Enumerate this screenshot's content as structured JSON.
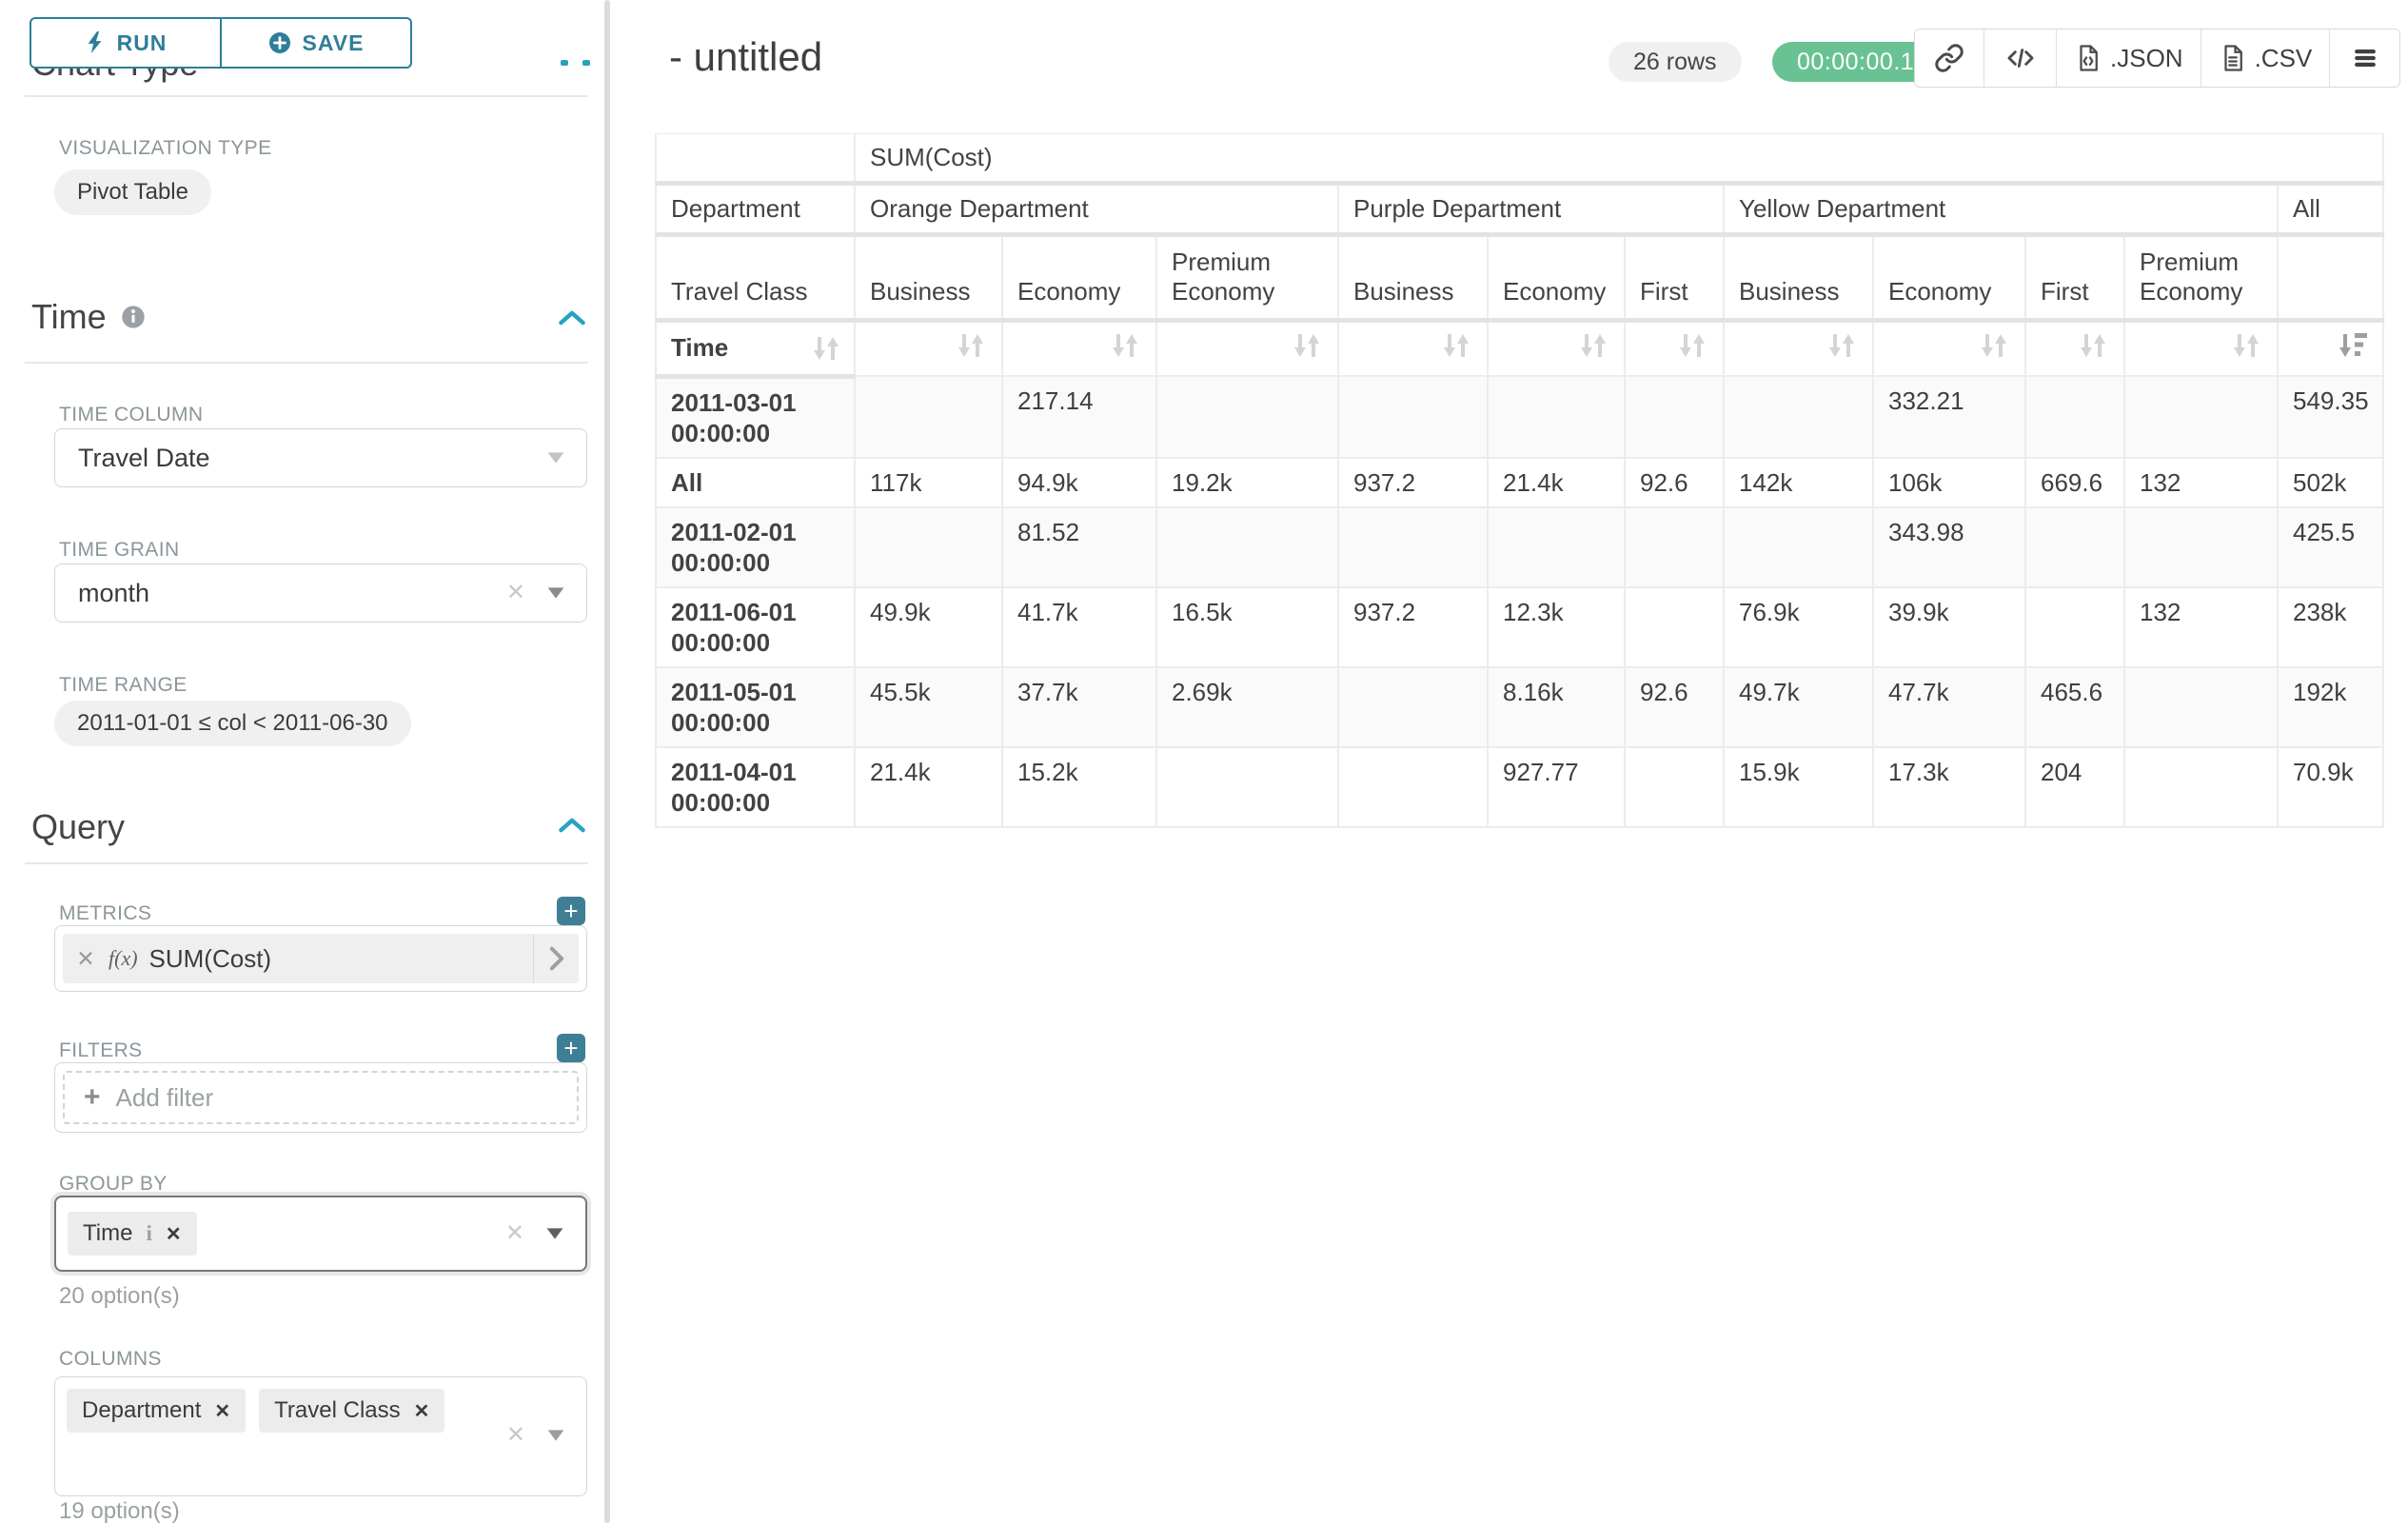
{
  "colors": {
    "primary": "#2E7E99",
    "accent": "#27A2C3",
    "success": "#69C292"
  },
  "toolbar": {
    "run_label": "RUN",
    "save_label": "SAVE"
  },
  "sidebar": {
    "chart_type_heading": "Chart Type",
    "visualization_type_label": "VISUALIZATION TYPE",
    "visualization_type_value": "Pivot Table",
    "time": {
      "title": "Time",
      "column_label": "TIME COLUMN",
      "column_value": "Travel Date",
      "grain_label": "TIME GRAIN",
      "grain_value": "month",
      "range_label": "TIME RANGE",
      "range_value": "2011-01-01 ≤ col < 2011-06-30"
    },
    "query": {
      "title": "Query",
      "metrics_label": "METRICS",
      "metric_fx": "f(x)",
      "metric_value": "SUM(Cost)",
      "filters_label": "FILTERS",
      "add_filter_placeholder": "Add filter",
      "group_by_label": "GROUP BY",
      "group_by_tags": [
        "Time"
      ],
      "group_by_options_hint": "20 option(s)",
      "columns_label": "COLUMNS",
      "columns_tags": [
        "Department",
        "Travel Class"
      ],
      "columns_options_hint": "19 option(s)"
    }
  },
  "results_header": {
    "title": "- untitled",
    "row_count": "26 rows",
    "elapsed_time": "00:00:00.18",
    "json_export_label": ".JSON",
    "csv_export_label": ".CSV"
  },
  "pivot_table": {
    "metric_header": "SUM(Cost)",
    "corner_labels": {
      "department": "Department",
      "travel_class": "Travel Class",
      "time": "Time"
    },
    "groups": [
      {
        "label": "Orange Department",
        "cols": [
          "Business",
          "Economy",
          "Premium Economy"
        ]
      },
      {
        "label": "Purple Department",
        "cols": [
          "Business",
          "Economy",
          "First"
        ]
      },
      {
        "label": "Yellow Department",
        "cols": [
          "Business",
          "Economy",
          "First",
          "Premium Economy"
        ]
      },
      {
        "label": "All",
        "cols": [
          ""
        ]
      }
    ],
    "rows": [
      {
        "label": "2011-03-01 00:00:00",
        "values": [
          "",
          "217.14",
          "",
          "",
          "",
          "",
          "",
          "332.21",
          "",
          "",
          "549.35"
        ]
      },
      {
        "label": "All",
        "values": [
          "117k",
          "94.9k",
          "19.2k",
          "937.2",
          "21.4k",
          "92.6",
          "142k",
          "106k",
          "669.6",
          "132",
          "502k"
        ]
      },
      {
        "label": "2011-02-01 00:00:00",
        "values": [
          "",
          "81.52",
          "",
          "",
          "",
          "",
          "",
          "343.98",
          "",
          "",
          "425.5"
        ]
      },
      {
        "label": "2011-06-01 00:00:00",
        "values": [
          "49.9k",
          "41.7k",
          "16.5k",
          "937.2",
          "12.3k",
          "",
          "76.9k",
          "39.9k",
          "",
          "132",
          "238k"
        ]
      },
      {
        "label": "2011-05-01 00:00:00",
        "values": [
          "45.5k",
          "37.7k",
          "2.69k",
          "",
          "8.16k",
          "92.6",
          "49.7k",
          "47.7k",
          "465.6",
          "",
          "192k"
        ]
      },
      {
        "label": "2011-04-01 00:00:00",
        "values": [
          "21.4k",
          "15.2k",
          "",
          "",
          "927.77",
          "",
          "15.9k",
          "17.3k",
          "204",
          "",
          "70.9k"
        ]
      }
    ]
  }
}
